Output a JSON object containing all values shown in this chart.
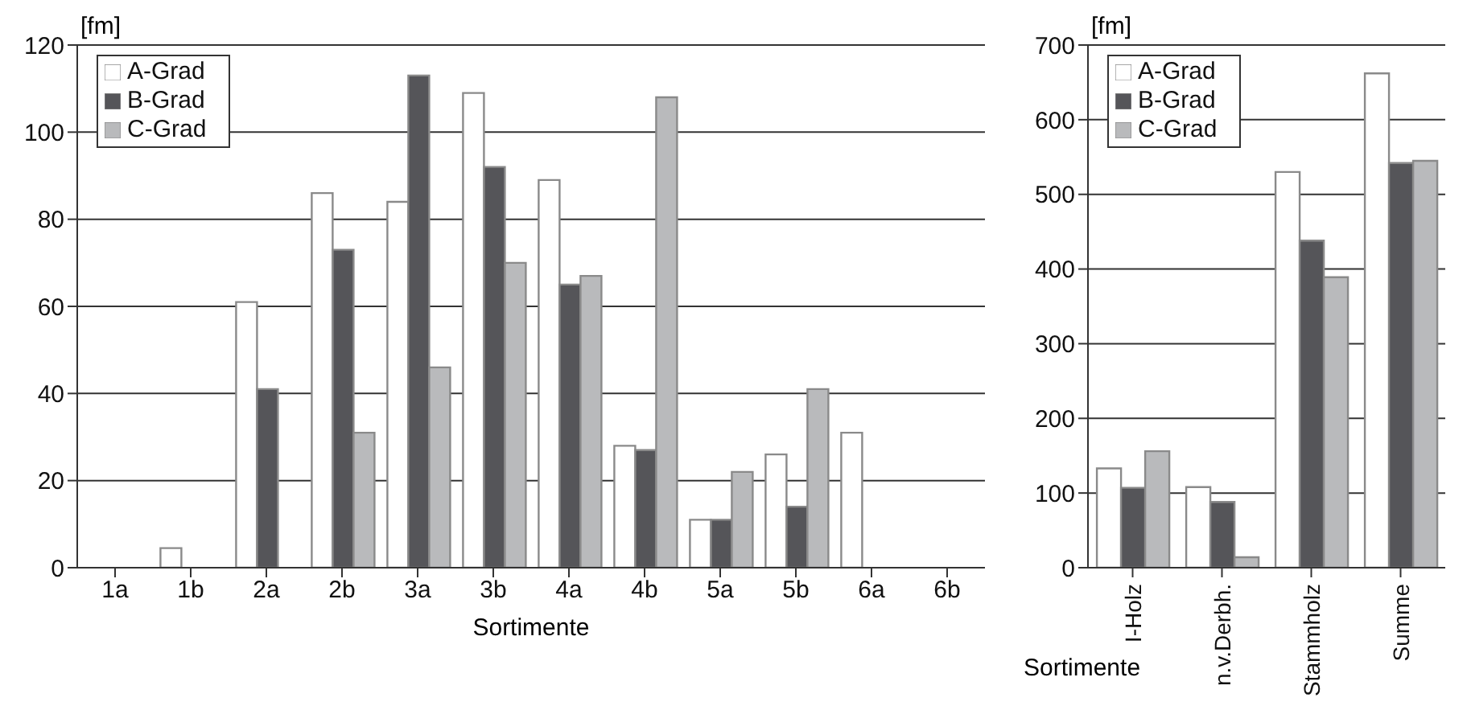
{
  "chart_data": [
    {
      "type": "bar",
      "ylabel": "[fm]",
      "xlabel": "Sortimente",
      "categories": [
        "1a",
        "1b",
        "2a",
        "2b",
        "3a",
        "3b",
        "4a",
        "4b",
        "5a",
        "5b",
        "6a",
        "6b"
      ],
      "series": [
        {
          "name": "A-Grad",
          "color": "#ffffff",
          "values": [
            0,
            4.5,
            61,
            86,
            84,
            109,
            89,
            28,
            11,
            26,
            31,
            0
          ]
        },
        {
          "name": "B-Grad",
          "color": "#555559",
          "values": [
            0,
            0,
            41,
            73,
            113,
            92,
            65,
            27,
            11,
            14,
            0,
            0
          ]
        },
        {
          "name": "C-Grad",
          "color": "#b9babc",
          "values": [
            0,
            0,
            0,
            31,
            46,
            70,
            67,
            108,
            22,
            41,
            0,
            0
          ]
        }
      ],
      "ylim": [
        0,
        120
      ],
      "yticks": [
        0,
        20,
        40,
        60,
        80,
        100,
        120
      ],
      "grid": "y",
      "legend": "top left"
    },
    {
      "type": "bar",
      "ylabel": "[fm]",
      "xlabel": "Sortimente",
      "categories": [
        "I-Holz",
        "n.v.Derbh.",
        "Stammholz",
        "Summe"
      ],
      "series": [
        {
          "name": "A-Grad",
          "color": "#ffffff",
          "values": [
            133,
            108,
            530,
            662
          ]
        },
        {
          "name": "B-Grad",
          "color": "#555559",
          "values": [
            107,
            88,
            438,
            542
          ]
        },
        {
          "name": "C-Grad",
          "color": "#b9babc",
          "values": [
            156,
            14,
            389,
            545
          ]
        }
      ],
      "ylim": [
        0,
        700
      ],
      "yticks": [
        0,
        100,
        200,
        300,
        400,
        500,
        600,
        700
      ],
      "grid": "y",
      "legend": "top left"
    }
  ]
}
